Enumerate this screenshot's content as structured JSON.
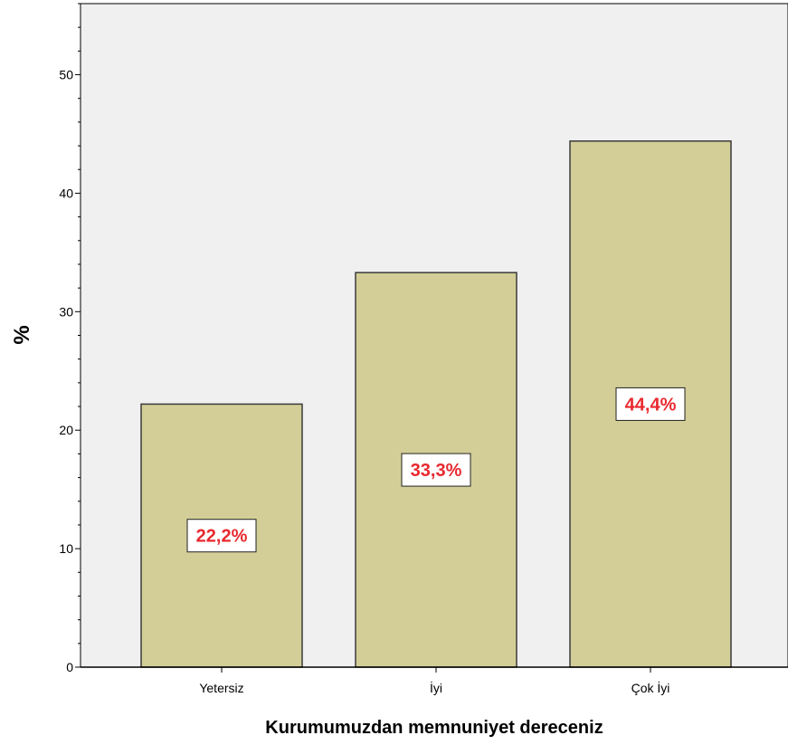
{
  "chart_data": {
    "type": "bar",
    "categories": [
      "Yetersiz",
      "İyi",
      "Çok İyi"
    ],
    "values": [
      22.2,
      33.3,
      44.4
    ],
    "data_labels": [
      "22,2%",
      "33,3%",
      "44,4%"
    ],
    "xlabel": "Kurumumuzdan memnuniyet dereceniz",
    "ylabel": "%",
    "ylim": [
      0,
      56
    ],
    "yticks": [
      0,
      10,
      20,
      30,
      40,
      50
    ],
    "grid": false,
    "colors": {
      "plot_background": "#f0f0f0",
      "bar_fill": "#d3ce97",
      "bar_stroke": "#3a3a3a",
      "label_text": "#e8292f",
      "label_box": "#ffffff"
    }
  }
}
